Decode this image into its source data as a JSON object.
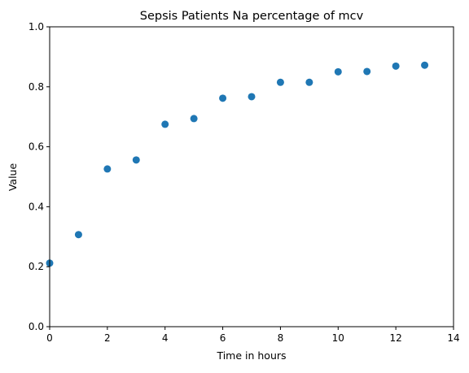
{
  "chart_data": {
    "type": "scatter",
    "title": "Sepsis Patients Na percentage of mcv",
    "xlabel": "Time in hours",
    "ylabel": "Value",
    "xlim": [
      0,
      14
    ],
    "ylim": [
      0,
      1.0
    ],
    "xticks": [
      0,
      2,
      4,
      6,
      8,
      10,
      12,
      14
    ],
    "yticks": [
      0.0,
      0.2,
      0.4,
      0.6,
      0.8,
      1.0
    ],
    "grid": false,
    "marker_color": "#1f77b4",
    "series": [
      {
        "x": [
          0,
          1,
          2,
          3,
          4,
          5,
          6,
          7,
          8,
          9,
          10,
          11,
          12,
          13
        ],
        "y": [
          0.212,
          0.307,
          0.526,
          0.556,
          0.675,
          0.694,
          0.762,
          0.767,
          0.815,
          0.815,
          0.85,
          0.851,
          0.869,
          0.872
        ]
      }
    ]
  }
}
